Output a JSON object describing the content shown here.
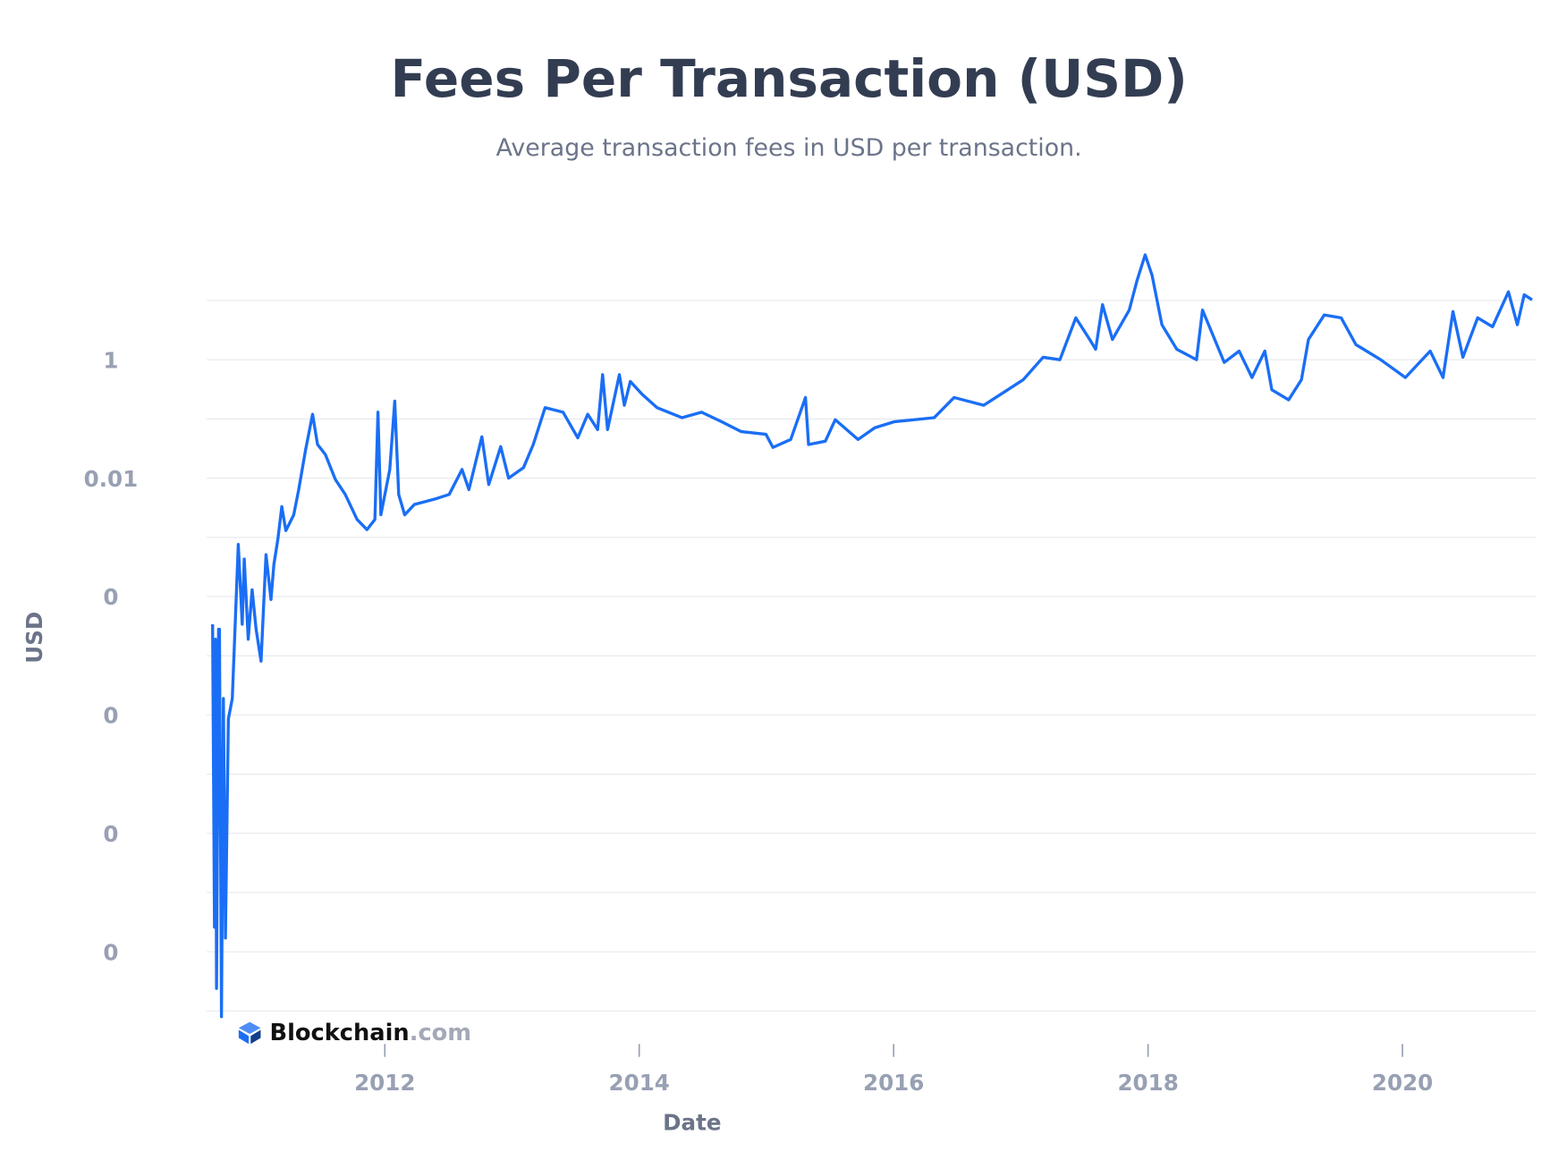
{
  "chart_data": {
    "type": "line",
    "title": "Fees Per Transaction (USD)",
    "subtitle": "Average transaction fees in USD per transaction.",
    "x_label": "Date",
    "y_label": "USD",
    "log_y": true,
    "grid": true,
    "xlim": [
      2010.6,
      2021.05
    ],
    "xticks": [
      2012,
      2014,
      2016,
      2018,
      2020
    ],
    "ylim": [
      3e-12,
      100
    ],
    "yticks": [
      1,
      0.01,
      {
        "value": 0.0001,
        "label": "0"
      },
      {
        "value": 1e-06,
        "label": "0"
      },
      {
        "value": 1e-08,
        "label": "0"
      },
      {
        "value": 1e-10,
        "label": "0"
      }
    ],
    "ygrid": [
      1e-11,
      1e-10,
      1e-09,
      1e-08,
      1e-07,
      1e-06,
      1e-05,
      0.0001,
      0.001,
      0.01,
      0.1,
      1,
      10
    ],
    "series": [
      {
        "name": "Fees Per Transaction (USD)",
        "color": "#1a6ef5",
        "x": [
          2010.646,
          2010.661,
          2010.669,
          2010.677,
          2010.693,
          2010.7,
          2010.716,
          2010.731,
          2010.747,
          2010.77,
          2010.801,
          2010.848,
          2010.879,
          2010.895,
          2010.926,
          2010.957,
          2010.988,
          2011.027,
          2011.066,
          2011.105,
          2011.128,
          2011.159,
          2011.19,
          2011.222,
          2011.284,
          2011.323,
          2011.377,
          2011.432,
          2011.471,
          2011.533,
          2011.611,
          2011.689,
          2011.782,
          2011.86,
          2011.922,
          2011.946,
          2011.969,
          2012.039,
          2012.078,
          2012.109,
          2012.156,
          2012.233,
          2012.389,
          2012.506,
          2012.607,
          2012.661,
          2012.763,
          2012.817,
          2012.911,
          2012.973,
          2013.09,
          2013.167,
          2013.26,
          2013.401,
          2013.517,
          2013.595,
          2013.673,
          2013.712,
          2013.751,
          2013.844,
          2013.883,
          2013.93,
          2014.023,
          2014.14,
          2014.335,
          2014.49,
          2014.646,
          2014.802,
          2014.996,
          2015.051,
          2015.191,
          2015.307,
          2015.331,
          2015.463,
          2015.541,
          2015.72,
          2015.852,
          2016.008,
          2016.163,
          2016.319,
          2016.475,
          2016.708,
          2016.864,
          2017.019,
          2017.175,
          2017.307,
          2017.432,
          2017.541,
          2017.588,
          2017.642,
          2017.72,
          2017.852,
          2017.914,
          2017.977,
          2018.031,
          2018.109,
          2018.226,
          2018.381,
          2018.428,
          2018.599,
          2018.716,
          2018.817,
          2018.918,
          2018.973,
          2019.105,
          2019.206,
          2019.261,
          2019.385,
          2019.518,
          2019.634,
          2019.829,
          2020.023,
          2020.218,
          2020.319,
          2020.397,
          2020.475,
          2020.591,
          2020.708,
          2020.833,
          2020.903,
          2020.957,
          2021.019
        ],
        "values": [
          3.4e-05,
          2.6e-10,
          1.9e-05,
          2.4e-11,
          2.8e-05,
          2.8e-05,
          8e-12,
          1.9e-06,
          1.7e-10,
          8.5e-07,
          1.9e-06,
          0.00076,
          3.4e-05,
          0.00043,
          1.9e-05,
          0.00013,
          2.8e-05,
          8.1e-06,
          0.00051,
          8.9e-05,
          0.00035,
          0.00092,
          0.0033,
          0.0013,
          0.0024,
          0.0064,
          0.03,
          0.12,
          0.037,
          0.025,
          0.0095,
          0.0053,
          0.002,
          0.00135,
          0.002,
          0.13,
          0.0024,
          0.014,
          0.2,
          0.0053,
          0.0024,
          0.0036,
          0.0044,
          0.0053,
          0.014,
          0.0064,
          0.05,
          0.0078,
          0.034,
          0.01,
          0.015,
          0.037,
          0.155,
          0.13,
          0.048,
          0.12,
          0.066,
          0.56,
          0.066,
          0.56,
          0.17,
          0.43,
          0.26,
          0.155,
          0.105,
          0.13,
          0.09,
          0.061,
          0.055,
          0.033,
          0.045,
          0.23,
          0.037,
          0.042,
          0.097,
          0.045,
          0.071,
          0.09,
          0.097,
          0.105,
          0.23,
          0.17,
          0.28,
          0.46,
          1.1,
          1,
          5.1,
          2.2,
          1.5,
          8.5,
          2.2,
          6.9,
          22,
          59,
          27,
          3.9,
          1.5,
          1,
          6.9,
          0.9,
          1.4,
          0.5,
          1.4,
          0.31,
          0.21,
          0.46,
          2.2,
          5.7,
          5.1,
          1.8,
          1,
          0.5,
          1.4,
          0.5,
          6.5,
          1.1,
          5.1,
          3.6,
          14,
          3.9,
          12.5,
          10.3
        ]
      }
    ]
  },
  "logo": {
    "name": "Blockchain",
    "suffix": ".com"
  }
}
